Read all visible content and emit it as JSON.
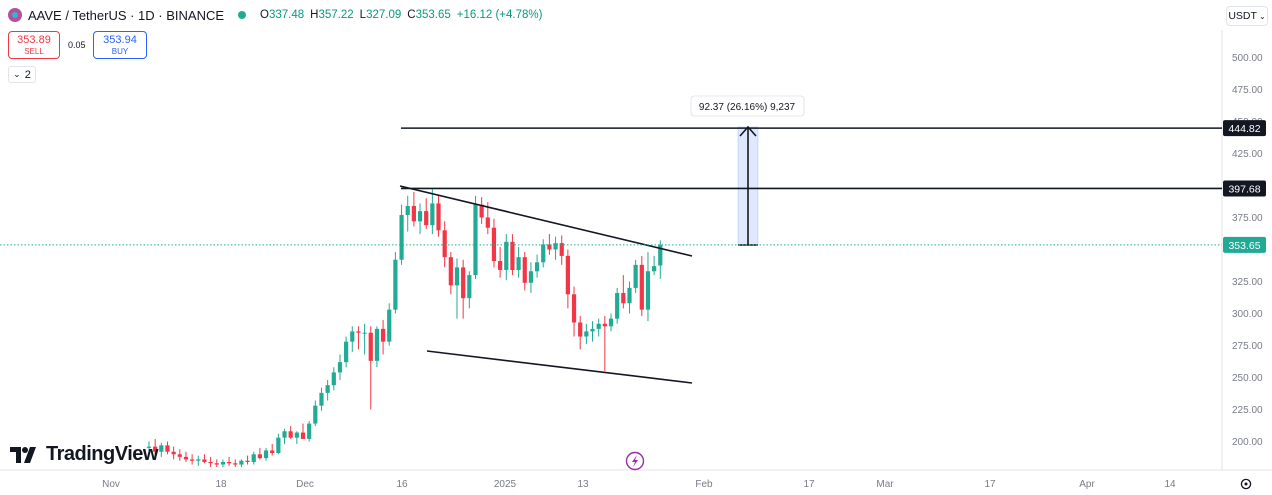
{
  "header": {
    "symbol_title": "AAVE / TetherUS · 1D · BINANCE",
    "ohlc": [
      {
        "key": "O",
        "value": "337.48"
      },
      {
        "key": "H",
        "value": "357.22"
      },
      {
        "key": "L",
        "value": "327.09"
      },
      {
        "key": "C",
        "value": "353.65"
      },
      {
        "key": "",
        "value": "+16.12 (+4.78%)"
      }
    ]
  },
  "trade": {
    "sell_price": "353.89",
    "sell_label": "SELL",
    "spread": "0.05",
    "buy_price": "353.94",
    "buy_label": "BUY"
  },
  "indicators_toggle": "2",
  "currency_button": "USDT",
  "logo_text": "TradingView",
  "colors": {
    "up": "#22ab94",
    "down": "#f23645",
    "accent": "#2962ff",
    "line": "#131722",
    "last_price": "#22ab94"
  },
  "chart_data": {
    "type": "candlestick",
    "y_ticks": [
      "500.00",
      "475.00",
      "450.00",
      "425.00",
      "375.00",
      "350.00",
      "325.00",
      "300.00",
      "275.00",
      "250.00",
      "225.00",
      "200.00"
    ],
    "ylim": [
      190,
      510
    ],
    "x_ticks": [
      "Nov",
      "18",
      "Dec",
      "16",
      "2025",
      "13",
      "Feb",
      "17",
      "Mar",
      "17",
      "Apr",
      "14"
    ],
    "candles": [
      {
        "o": 195,
        "h": 200,
        "l": 188,
        "c": 196
      },
      {
        "o": 196,
        "h": 202,
        "l": 190,
        "c": 192
      },
      {
        "o": 192,
        "h": 199,
        "l": 188,
        "c": 197
      },
      {
        "o": 197,
        "h": 200,
        "l": 190,
        "c": 192
      },
      {
        "o": 192,
        "h": 196,
        "l": 186,
        "c": 190
      },
      {
        "o": 190,
        "h": 194,
        "l": 185,
        "c": 188
      },
      {
        "o": 188,
        "h": 192,
        "l": 184,
        "c": 186
      },
      {
        "o": 186,
        "h": 190,
        "l": 182,
        "c": 185
      },
      {
        "o": 185,
        "h": 189,
        "l": 181,
        "c": 186
      },
      {
        "o": 186,
        "h": 190,
        "l": 183,
        "c": 184
      },
      {
        "o": 184,
        "h": 188,
        "l": 180,
        "c": 183
      },
      {
        "o": 183,
        "h": 186,
        "l": 180,
        "c": 182
      },
      {
        "o": 182,
        "h": 186,
        "l": 180,
        "c": 184
      },
      {
        "o": 184,
        "h": 188,
        "l": 181,
        "c": 183
      },
      {
        "o": 183,
        "h": 186,
        "l": 180,
        "c": 182
      },
      {
        "o": 182,
        "h": 186,
        "l": 180,
        "c": 185
      },
      {
        "o": 185,
        "h": 189,
        "l": 182,
        "c": 184
      },
      {
        "o": 184,
        "h": 192,
        "l": 182,
        "c": 190
      },
      {
        "o": 190,
        "h": 195,
        "l": 186,
        "c": 187
      },
      {
        "o": 187,
        "h": 195,
        "l": 185,
        "c": 193
      },
      {
        "o": 193,
        "h": 198,
        "l": 189,
        "c": 191
      },
      {
        "o": 191,
        "h": 206,
        "l": 190,
        "c": 203
      },
      {
        "o": 203,
        "h": 210,
        "l": 198,
        "c": 208
      },
      {
        "o": 208,
        "h": 212,
        "l": 202,
        "c": 203
      },
      {
        "o": 203,
        "h": 208,
        "l": 198,
        "c": 207
      },
      {
        "o": 207,
        "h": 214,
        "l": 203,
        "c": 202
      },
      {
        "o": 202,
        "h": 216,
        "l": 200,
        "c": 214
      },
      {
        "o": 214,
        "h": 232,
        "l": 212,
        "c": 228
      },
      {
        "o": 228,
        "h": 242,
        "l": 224,
        "c": 238
      },
      {
        "o": 238,
        "h": 248,
        "l": 232,
        "c": 244
      },
      {
        "o": 244,
        "h": 258,
        "l": 240,
        "c": 254
      },
      {
        "o": 254,
        "h": 268,
        "l": 248,
        "c": 262
      },
      {
        "o": 262,
        "h": 282,
        "l": 258,
        "c": 278
      },
      {
        "o": 278,
        "h": 290,
        "l": 270,
        "c": 286
      },
      {
        "o": 286,
        "h": 290,
        "l": 272,
        "c": 285
      },
      {
        "o": 285,
        "h": 292,
        "l": 268,
        "c": 285
      },
      {
        "o": 285,
        "h": 290,
        "l": 225,
        "c": 263
      },
      {
        "o": 263,
        "h": 290,
        "l": 258,
        "c": 288
      },
      {
        "o": 288,
        "h": 295,
        "l": 268,
        "c": 278
      },
      {
        "o": 278,
        "h": 308,
        "l": 275,
        "c": 303
      },
      {
        "o": 303,
        "h": 348,
        "l": 300,
        "c": 342
      },
      {
        "o": 342,
        "h": 385,
        "l": 338,
        "c": 377
      },
      {
        "o": 377,
        "h": 392,
        "l": 364,
        "c": 384
      },
      {
        "o": 384,
        "h": 395,
        "l": 368,
        "c": 372
      },
      {
        "o": 372,
        "h": 386,
        "l": 362,
        "c": 380
      },
      {
        "o": 380,
        "h": 390,
        "l": 366,
        "c": 369
      },
      {
        "o": 369,
        "h": 398,
        "l": 362,
        "c": 386
      },
      {
        "o": 386,
        "h": 393,
        "l": 360,
        "c": 365
      },
      {
        "o": 365,
        "h": 372,
        "l": 336,
        "c": 344
      },
      {
        "o": 344,
        "h": 348,
        "l": 315,
        "c": 322
      },
      {
        "o": 322,
        "h": 343,
        "l": 296,
        "c": 336
      },
      {
        "o": 336,
        "h": 342,
        "l": 296,
        "c": 312
      },
      {
        "o": 312,
        "h": 333,
        "l": 304,
        "c": 330
      },
      {
        "o": 330,
        "h": 392,
        "l": 327,
        "c": 385
      },
      {
        "o": 385,
        "h": 391,
        "l": 370,
        "c": 375
      },
      {
        "o": 375,
        "h": 387,
        "l": 362,
        "c": 367
      },
      {
        "o": 367,
        "h": 374,
        "l": 336,
        "c": 341
      },
      {
        "o": 341,
        "h": 352,
        "l": 328,
        "c": 334
      },
      {
        "o": 334,
        "h": 362,
        "l": 326,
        "c": 356
      },
      {
        "o": 356,
        "h": 362,
        "l": 330,
        "c": 334
      },
      {
        "o": 334,
        "h": 352,
        "l": 328,
        "c": 344
      },
      {
        "o": 344,
        "h": 348,
        "l": 318,
        "c": 324
      },
      {
        "o": 324,
        "h": 340,
        "l": 316,
        "c": 333
      },
      {
        "o": 333,
        "h": 346,
        "l": 328,
        "c": 340
      },
      {
        "o": 340,
        "h": 358,
        "l": 336,
        "c": 354
      },
      {
        "o": 354,
        "h": 362,
        "l": 346,
        "c": 350
      },
      {
        "o": 350,
        "h": 360,
        "l": 342,
        "c": 355
      },
      {
        "o": 355,
        "h": 361,
        "l": 338,
        "c": 345
      },
      {
        "o": 345,
        "h": 350,
        "l": 304,
        "c": 315
      },
      {
        "o": 315,
        "h": 321,
        "l": 282,
        "c": 293
      },
      {
        "o": 293,
        "h": 298,
        "l": 272,
        "c": 282
      },
      {
        "o": 282,
        "h": 292,
        "l": 276,
        "c": 286
      },
      {
        "o": 286,
        "h": 294,
        "l": 278,
        "c": 288
      },
      {
        "o": 288,
        "h": 296,
        "l": 282,
        "c": 292
      },
      {
        "o": 292,
        "h": 298,
        "l": 255,
        "c": 290
      },
      {
        "o": 290,
        "h": 300,
        "l": 286,
        "c": 296
      },
      {
        "o": 296,
        "h": 320,
        "l": 292,
        "c": 316
      },
      {
        "o": 316,
        "h": 330,
        "l": 304,
        "c": 308
      },
      {
        "o": 308,
        "h": 325,
        "l": 300,
        "c": 320
      },
      {
        "o": 320,
        "h": 342,
        "l": 316,
        "c": 338
      },
      {
        "o": 338,
        "h": 345,
        "l": 298,
        "c": 303
      },
      {
        "o": 303,
        "h": 348,
        "l": 294,
        "c": 333
      },
      {
        "o": 333,
        "h": 345,
        "l": 330,
        "c": 337
      },
      {
        "o": 337.48,
        "h": 357.22,
        "l": 327.09,
        "c": 353.65
      }
    ],
    "price_lines": [
      {
        "label": "444.82",
        "value": 444.82
      },
      {
        "label": "397.68",
        "value": 397.68
      }
    ],
    "last_price": {
      "label": "353.65",
      "value": 353.65
    },
    "measure_label": "92.37 (26.16%) 9,237"
  }
}
